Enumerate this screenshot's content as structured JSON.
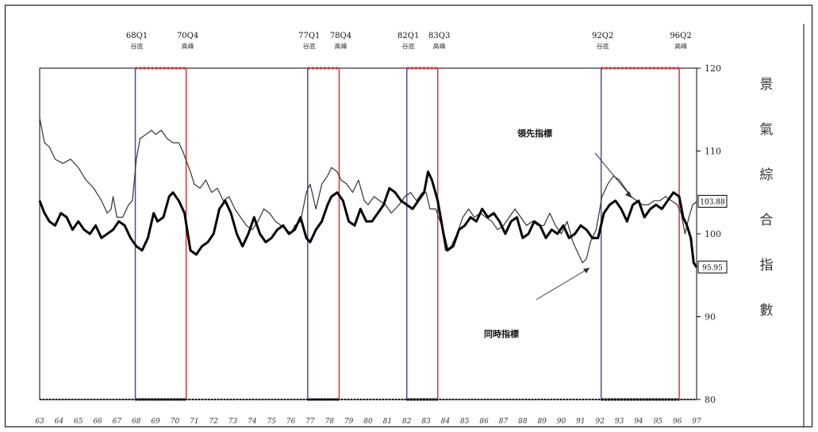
{
  "chart_data": {
    "type": "line",
    "ylabel": "景氣綜合指數",
    "ylim": [
      80,
      120
    ],
    "yticks": [
      80,
      90,
      100,
      110,
      120
    ],
    "xlim": [
      63,
      97
    ],
    "xtick_labels": [
      "63",
      "64",
      "65",
      "66",
      "67",
      "68",
      "69",
      "70",
      "71",
      "72",
      "73",
      "74",
      "75",
      "76",
      "77",
      "78",
      "79",
      "80",
      "81",
      "82",
      "83",
      "84",
      "85",
      "86",
      "87",
      "88",
      "89",
      "90",
      "91",
      "92",
      "93",
      "94",
      "95",
      "96",
      "97"
    ],
    "grid": false,
    "legend": "annotations",
    "series": [
      {
        "name": "領先指標",
        "color": "#333333",
        "end_value": "103.88",
        "points": [
          [
            63.0,
            114
          ],
          [
            63.25,
            111
          ],
          [
            63.5,
            110.5
          ],
          [
            63.8,
            109
          ],
          [
            64.2,
            108.5
          ],
          [
            64.6,
            109
          ],
          [
            65.0,
            108
          ],
          [
            65.4,
            106.5
          ],
          [
            65.8,
            105.5
          ],
          [
            66.2,
            104
          ],
          [
            66.5,
            102.5
          ],
          [
            66.7,
            103
          ],
          [
            66.8,
            104.5
          ],
          [
            67.0,
            102
          ],
          [
            67.3,
            102
          ],
          [
            67.6,
            103.5
          ],
          [
            67.8,
            104
          ],
          [
            68.0,
            109
          ],
          [
            68.2,
            111.5
          ],
          [
            68.5,
            112
          ],
          [
            68.8,
            112.5
          ],
          [
            69.0,
            112
          ],
          [
            69.3,
            112.5
          ],
          [
            69.6,
            111.5
          ],
          [
            69.9,
            111
          ],
          [
            70.2,
            111
          ],
          [
            70.4,
            110
          ],
          [
            70.8,
            107.5
          ],
          [
            71.0,
            106
          ],
          [
            71.3,
            105.5
          ],
          [
            71.6,
            106.5
          ],
          [
            71.9,
            105
          ],
          [
            72.2,
            105.5
          ],
          [
            72.5,
            104
          ],
          [
            72.8,
            104.5
          ],
          [
            73.1,
            103
          ],
          [
            73.4,
            102
          ],
          [
            73.7,
            101
          ],
          [
            74.0,
            100.5
          ],
          [
            74.3,
            101.5
          ],
          [
            74.6,
            103
          ],
          [
            74.9,
            102.5
          ],
          [
            75.2,
            101.5
          ],
          [
            75.5,
            101
          ],
          [
            75.8,
            100.5
          ],
          [
            76.0,
            100
          ],
          [
            76.2,
            101
          ],
          [
            76.5,
            101.5
          ],
          [
            76.8,
            105
          ],
          [
            77.0,
            106
          ],
          [
            77.3,
            103
          ],
          [
            77.6,
            106
          ],
          [
            77.9,
            107
          ],
          [
            78.1,
            108
          ],
          [
            78.4,
            107.5
          ],
          [
            78.6,
            106.5
          ],
          [
            78.9,
            106
          ],
          [
            79.2,
            105
          ],
          [
            79.5,
            106.5
          ],
          [
            79.8,
            104
          ],
          [
            80.0,
            103.5
          ],
          [
            80.3,
            104.5
          ],
          [
            80.6,
            104
          ],
          [
            80.9,
            103.5
          ],
          [
            81.2,
            102.5
          ],
          [
            81.6,
            103.5
          ],
          [
            81.9,
            104.5
          ],
          [
            82.2,
            105
          ],
          [
            82.5,
            104
          ],
          [
            82.8,
            105
          ],
          [
            83.0,
            105
          ],
          [
            83.2,
            103
          ],
          [
            83.5,
            103
          ],
          [
            83.8,
            101
          ],
          [
            84.0,
            98
          ],
          [
            84.3,
            98.5
          ],
          [
            84.6,
            100
          ],
          [
            84.9,
            102
          ],
          [
            85.2,
            103
          ],
          [
            85.5,
            102
          ],
          [
            85.8,
            102.5
          ],
          [
            86.1,
            102
          ],
          [
            86.4,
            101.5
          ],
          [
            86.7,
            100.5
          ],
          [
            87.0,
            101
          ],
          [
            87.3,
            102
          ],
          [
            87.6,
            103
          ],
          [
            87.9,
            102
          ],
          [
            88.2,
            101
          ],
          [
            88.5,
            101.5
          ],
          [
            88.8,
            101
          ],
          [
            89.1,
            101
          ],
          [
            89.4,
            102.5
          ],
          [
            89.7,
            101
          ],
          [
            90.0,
            100
          ],
          [
            90.3,
            101.5
          ],
          [
            90.6,
            99
          ],
          [
            90.9,
            97.5
          ],
          [
            91.1,
            96.5
          ],
          [
            91.3,
            97
          ],
          [
            91.5,
            99
          ],
          [
            91.8,
            100.5
          ],
          [
            92.1,
            104.5
          ],
          [
            92.4,
            106
          ],
          [
            92.7,
            107
          ],
          [
            93.0,
            106.5
          ],
          [
            93.3,
            105.5
          ],
          [
            93.6,
            104.5
          ],
          [
            93.9,
            104
          ],
          [
            94.2,
            103.5
          ],
          [
            94.5,
            103.5
          ],
          [
            94.8,
            104
          ],
          [
            95.1,
            104
          ],
          [
            95.4,
            104.5
          ],
          [
            95.7,
            104
          ],
          [
            96.0,
            103.5
          ],
          [
            96.2,
            102.5
          ],
          [
            96.4,
            100
          ],
          [
            96.6,
            102
          ],
          [
            96.8,
            103.5
          ],
          [
            97.0,
            103.88
          ]
        ]
      },
      {
        "name": "同時指標",
        "color": "#000000",
        "end_value": "95.95",
        "points": [
          [
            63.0,
            104
          ],
          [
            63.25,
            102.5
          ],
          [
            63.5,
            101.5
          ],
          [
            63.8,
            101
          ],
          [
            64.1,
            102.5
          ],
          [
            64.4,
            102
          ],
          [
            64.7,
            100.5
          ],
          [
            65.0,
            101.5
          ],
          [
            65.3,
            100.5
          ],
          [
            65.6,
            100
          ],
          [
            65.9,
            101
          ],
          [
            66.2,
            99.5
          ],
          [
            66.5,
            100
          ],
          [
            66.8,
            100.5
          ],
          [
            67.1,
            101.5
          ],
          [
            67.4,
            101
          ],
          [
            67.7,
            99.5
          ],
          [
            68.0,
            98.5
          ],
          [
            68.3,
            98
          ],
          [
            68.6,
            99.5
          ],
          [
            68.9,
            102.5
          ],
          [
            69.1,
            101.5
          ],
          [
            69.4,
            102
          ],
          [
            69.7,
            104.5
          ],
          [
            69.9,
            105
          ],
          [
            70.2,
            104
          ],
          [
            70.5,
            102.5
          ],
          [
            70.8,
            98
          ],
          [
            71.1,
            97.5
          ],
          [
            71.4,
            98.5
          ],
          [
            71.7,
            99
          ],
          [
            72.0,
            100
          ],
          [
            72.3,
            103
          ],
          [
            72.6,
            104
          ],
          [
            72.9,
            102.5
          ],
          [
            73.2,
            100
          ],
          [
            73.5,
            98.5
          ],
          [
            73.8,
            100
          ],
          [
            74.1,
            102
          ],
          [
            74.4,
            100
          ],
          [
            74.7,
            99
          ],
          [
            75.0,
            99.5
          ],
          [
            75.3,
            100.5
          ],
          [
            75.6,
            101
          ],
          [
            75.9,
            100
          ],
          [
            76.2,
            100.5
          ],
          [
            76.5,
            102
          ],
          [
            76.8,
            99.5
          ],
          [
            77.0,
            99
          ],
          [
            77.3,
            100.5
          ],
          [
            77.6,
            101.5
          ],
          [
            77.9,
            103.5
          ],
          [
            78.1,
            104.5
          ],
          [
            78.4,
            105
          ],
          [
            78.7,
            104
          ],
          [
            79.0,
            101.5
          ],
          [
            79.3,
            101
          ],
          [
            79.6,
            103
          ],
          [
            79.9,
            101.5
          ],
          [
            80.2,
            101.5
          ],
          [
            80.5,
            102.5
          ],
          [
            80.8,
            103.5
          ],
          [
            81.1,
            105.5
          ],
          [
            81.4,
            105
          ],
          [
            81.7,
            104
          ],
          [
            82.0,
            103.5
          ],
          [
            82.3,
            103
          ],
          [
            82.6,
            104
          ],
          [
            82.9,
            105
          ],
          [
            83.1,
            107.5
          ],
          [
            83.3,
            106.5
          ],
          [
            83.6,
            104
          ],
          [
            83.9,
            100
          ],
          [
            84.1,
            98
          ],
          [
            84.4,
            98.5
          ],
          [
            84.7,
            100.5
          ],
          [
            85.0,
            101
          ],
          [
            85.3,
            102
          ],
          [
            85.6,
            101.5
          ],
          [
            85.9,
            103
          ],
          [
            86.2,
            102
          ],
          [
            86.5,
            102.5
          ],
          [
            86.8,
            101.5
          ],
          [
            87.1,
            100
          ],
          [
            87.4,
            101.5
          ],
          [
            87.7,
            102
          ],
          [
            88.0,
            99.5
          ],
          [
            88.3,
            100
          ],
          [
            88.6,
            101.5
          ],
          [
            88.9,
            101
          ],
          [
            89.2,
            99.5
          ],
          [
            89.5,
            100.5
          ],
          [
            89.8,
            100
          ],
          [
            90.1,
            101
          ],
          [
            90.4,
            99.5
          ],
          [
            90.7,
            100
          ],
          [
            91.0,
            101
          ],
          [
            91.3,
            100.5
          ],
          [
            91.6,
            99.5
          ],
          [
            91.9,
            99.5
          ],
          [
            92.2,
            102.5
          ],
          [
            92.5,
            103.5
          ],
          [
            92.8,
            104
          ],
          [
            93.1,
            103
          ],
          [
            93.4,
            101.5
          ],
          [
            93.7,
            103.5
          ],
          [
            94.0,
            104
          ],
          [
            94.3,
            102
          ],
          [
            94.6,
            103
          ],
          [
            94.9,
            103.5
          ],
          [
            95.2,
            103
          ],
          [
            95.5,
            104
          ],
          [
            95.8,
            105
          ],
          [
            96.1,
            104.5
          ],
          [
            96.3,
            102
          ],
          [
            96.5,
            101
          ],
          [
            96.7,
            99.5
          ],
          [
            96.85,
            96.5
          ],
          [
            97.0,
            95.95
          ]
        ]
      }
    ],
    "phases": [
      {
        "date": "68Q1",
        "type": "谷底",
        "x": 67.95,
        "color": "#4a4aa0"
      },
      {
        "date": "70Q4",
        "type": "高峰",
        "x": 70.58,
        "color": "#e03030"
      },
      {
        "date": "77Q1",
        "type": "谷底",
        "x": 76.87,
        "color": "#4a4aa0"
      },
      {
        "date": "78Q4",
        "type": "高峰",
        "x": 78.5,
        "color": "#e03030"
      },
      {
        "date": "82Q1",
        "type": "谷底",
        "x": 82.0,
        "color": "#4a4aa0"
      },
      {
        "date": "83Q3",
        "type": "高峰",
        "x": 83.6,
        "color": "#e03030"
      },
      {
        "date": "92Q2",
        "type": "谷底",
        "x": 92.06,
        "color": "#4a4aa0"
      },
      {
        "date": "96Q2",
        "type": "高峰",
        "x": 96.1,
        "color": "#e03030"
      }
    ],
    "annotations": [
      {
        "text": "領先指標"
      },
      {
        "text": "同時指標"
      }
    ]
  }
}
